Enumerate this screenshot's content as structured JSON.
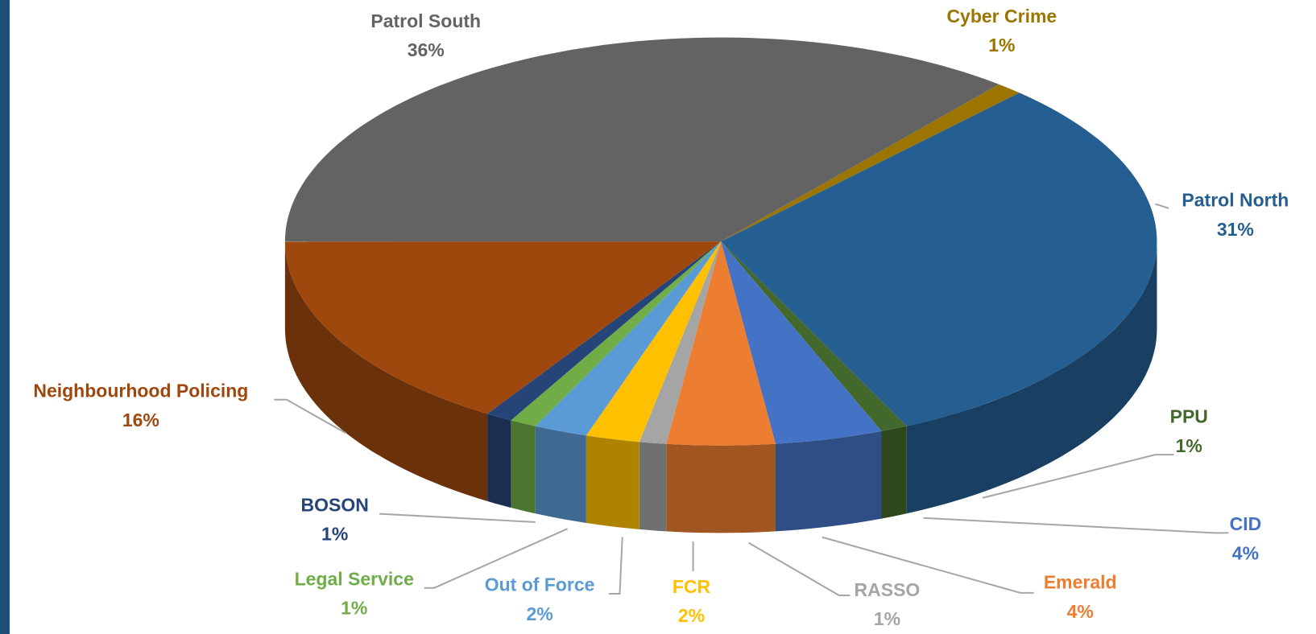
{
  "chart_data": {
    "type": "pie",
    "categories": [
      "Cyber Crime",
      "Patrol North",
      "PPU",
      "CID",
      "Emerald",
      "RASSO",
      "FCR",
      "Out of Force",
      "Legal Service",
      "BOSON",
      "Neighbourhood Policing",
      "Patrol South"
    ],
    "values": [
      1,
      31,
      1,
      4,
      4,
      1,
      2,
      2,
      1,
      1,
      16,
      36
    ],
    "value_labels": [
      "1%",
      "31%",
      "1%",
      "4%",
      "4%",
      "1%",
      "2%",
      "2%",
      "1%",
      "1%",
      "16%",
      "36%"
    ],
    "colors": [
      "#9c7500",
      "#255e91",
      "#43682b",
      "#4472c4",
      "#ed7d31",
      "#a5a5a5",
      "#ffc000",
      "#5b9bd5",
      "#70ad47",
      "#264478",
      "#9e480e",
      "#636363"
    ]
  }
}
